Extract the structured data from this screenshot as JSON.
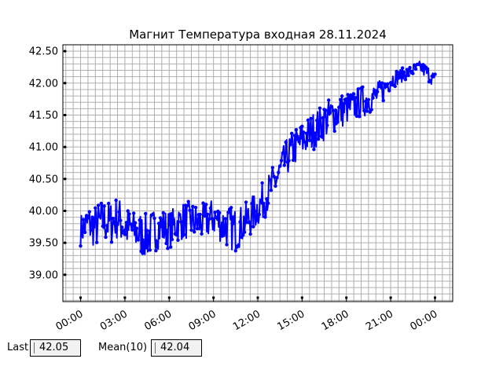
{
  "chart_data": {
    "type": "line",
    "title": "Магнит Температура входная 28.11.2024",
    "xlabel": "",
    "ylabel": "",
    "x_tick_labels": [
      "00:00",
      "03:00",
      "06:00",
      "09:00",
      "12:00",
      "15:00",
      "18:00",
      "21:00",
      "00:00"
    ],
    "x_ticks_hours": [
      0,
      3,
      6,
      9,
      12,
      15,
      18,
      21,
      24
    ],
    "xlim_hours": [
      -1.2,
      25.2
    ],
    "y_tick_labels": [
      "39.00",
      "39.50",
      "40.00",
      "40.50",
      "41.00",
      "41.50",
      "42.00",
      "42.50"
    ],
    "y_ticks": [
      39.0,
      39.5,
      40.0,
      40.5,
      41.0,
      41.5,
      42.0,
      42.5
    ],
    "ylim": [
      38.58,
      42.6
    ],
    "grid": true,
    "line_color": "#0000ff",
    "series": [
      {
        "x_hours": [
          0.0,
          0.5,
          1.0,
          1.5,
          2.0,
          2.5,
          3.0,
          3.5,
          4.0,
          4.5,
          5.0,
          5.5,
          6.0,
          6.5,
          7.0,
          7.5,
          8.0,
          8.5,
          9.0,
          9.5,
          10.0,
          10.5,
          11.0,
          11.5,
          12.0,
          12.5,
          13.0,
          13.5,
          14.0,
          14.5,
          15.0,
          15.5,
          16.0,
          16.5,
          17.0,
          17.5,
          18.0,
          18.5,
          19.0,
          19.5,
          20.0,
          20.5,
          21.0,
          21.5,
          22.0,
          22.5,
          23.0,
          23.5,
          24.0
        ],
        "values": [
          39.7,
          39.8,
          39.75,
          39.85,
          39.8,
          39.9,
          39.75,
          39.7,
          39.65,
          39.6,
          39.7,
          39.75,
          39.7,
          39.8,
          39.85,
          39.85,
          39.8,
          39.85,
          39.9,
          39.8,
          39.75,
          39.7,
          39.8,
          39.9,
          40.05,
          40.2,
          40.4,
          40.6,
          40.85,
          41.0,
          41.1,
          41.2,
          41.3,
          41.4,
          41.5,
          41.55,
          41.6,
          41.65,
          41.7,
          41.75,
          41.8,
          41.9,
          42.05,
          42.1,
          42.15,
          42.2,
          42.25,
          42.15,
          42.05
        ],
        "spread": [
          0.25,
          0.3,
          0.35,
          0.35,
          0.35,
          0.35,
          0.35,
          0.3,
          0.35,
          0.35,
          0.35,
          0.3,
          0.3,
          0.3,
          0.3,
          0.3,
          0.3,
          0.3,
          0.3,
          0.3,
          0.35,
          0.35,
          0.3,
          0.3,
          0.3,
          0.3,
          0.3,
          0.3,
          0.3,
          0.3,
          0.3,
          0.3,
          0.3,
          0.3,
          0.3,
          0.3,
          0.25,
          0.25,
          0.25,
          0.25,
          0.2,
          0.2,
          0.15,
          0.12,
          0.1,
          0.1,
          0.1,
          0.12,
          0.12
        ]
      }
    ]
  },
  "stats": {
    "last_label": "Last",
    "last_value": "42.05",
    "mean_label": "Mean(10)",
    "mean_value": "42.04"
  }
}
